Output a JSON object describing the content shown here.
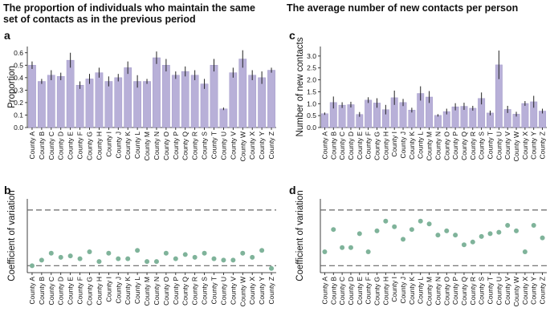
{
  "titles": {
    "left_line1": "The proportion of individuals who maintain the same",
    "left_line2": "set of contacts as in the previous period",
    "right": "The average number of new contacts per person"
  },
  "panel_letters": {
    "a": "a",
    "b": "b",
    "c": "c",
    "d": "d"
  },
  "colors": {
    "bar": "#b8b0d8",
    "bar_edge": "#9a90c4",
    "point": "#7fb39a",
    "error": "#222222",
    "ref_line": "#666666"
  },
  "chart_data": [
    {
      "id": "a",
      "type": "bar",
      "ylabel": "Proportion",
      "ylim": [
        0,
        0.65
      ],
      "yticks": [
        "0.0",
        "0.1",
        "0.2",
        "0.3",
        "0.4",
        "0.5",
        "0.6"
      ],
      "categories": [
        "County A",
        "County B",
        "County C",
        "County D",
        "County E",
        "County F",
        "County G",
        "County H",
        "County I",
        "County J",
        "County K",
        "County L",
        "County M",
        "County N",
        "County O",
        "County P",
        "County Q",
        "County R",
        "County S",
        "County T",
        "County U",
        "County V",
        "County W",
        "County X",
        "County Y",
        "County Z"
      ],
      "values": [
        0.5,
        0.37,
        0.42,
        0.41,
        0.54,
        0.34,
        0.39,
        0.44,
        0.37,
        0.4,
        0.48,
        0.37,
        0.37,
        0.56,
        0.5,
        0.42,
        0.45,
        0.42,
        0.35,
        0.5,
        0.15,
        0.44,
        0.55,
        0.42,
        0.4,
        0.46
      ],
      "errors": [
        0.03,
        0.02,
        0.04,
        0.03,
        0.06,
        0.03,
        0.04,
        0.04,
        0.04,
        0.03,
        0.05,
        0.05,
        0.02,
        0.05,
        0.05,
        0.03,
        0.04,
        0.04,
        0.04,
        0.05,
        0.01,
        0.04,
        0.07,
        0.04,
        0.05,
        0.02
      ]
    },
    {
      "id": "b",
      "type": "scatter",
      "ylabel": "Coefficient of variation",
      "ylim": [
        0.05,
        0.58
      ],
      "reference_lines": [
        0.1,
        0.5
      ],
      "categories": [
        "County A",
        "County B",
        "County C",
        "County D",
        "County E",
        "County F",
        "County G",
        "County H",
        "County I",
        "County J",
        "County K",
        "County L",
        "County M",
        "County N",
        "County O",
        "County P",
        "County Q",
        "County R",
        "County S",
        "County T",
        "County U",
        "County V",
        "County W",
        "County X",
        "County Y",
        "County Z"
      ],
      "values": [
        0.1,
        0.14,
        0.19,
        0.16,
        0.17,
        0.15,
        0.2,
        0.13,
        0.19,
        0.15,
        0.15,
        0.21,
        0.13,
        0.13,
        0.19,
        0.15,
        0.18,
        0.16,
        0.19,
        0.15,
        0.14,
        0.14,
        0.19,
        0.16,
        0.21,
        0.08
      ]
    },
    {
      "id": "c",
      "type": "bar",
      "ylabel": "Number of new contacts",
      "ylim": [
        0,
        3.4
      ],
      "yticks": [
        "0.0",
        "0.5",
        "1.0",
        "1.5",
        "2.0",
        "2.5",
        "3.0"
      ],
      "categories": [
        "County A",
        "County B",
        "County C",
        "County D",
        "County E",
        "County F",
        "County G",
        "County H",
        "County I",
        "County J",
        "County K",
        "County L",
        "County M",
        "County N",
        "County O",
        "County P",
        "County Q",
        "County R",
        "County S",
        "County T",
        "County U",
        "County V",
        "County W",
        "County X",
        "County Y",
        "County Z"
      ],
      "values": [
        0.58,
        1.05,
        0.94,
        0.96,
        0.55,
        1.15,
        1.03,
        0.75,
        1.25,
        1.05,
        0.73,
        1.43,
        1.28,
        0.51,
        0.67,
        0.87,
        0.89,
        0.81,
        1.22,
        0.61,
        2.63,
        0.76,
        0.56,
        1.01,
        1.08,
        0.69
      ],
      "errors": [
        0.05,
        0.25,
        0.12,
        0.12,
        0.1,
        0.12,
        0.2,
        0.2,
        0.3,
        0.15,
        0.1,
        0.3,
        0.25,
        0.05,
        0.12,
        0.15,
        0.15,
        0.1,
        0.25,
        0.1,
        0.6,
        0.15,
        0.1,
        0.1,
        0.25,
        0.1
      ]
    },
    {
      "id": "d",
      "type": "scatter",
      "ylabel": "Coefficient of variation",
      "ylim": [
        0.05,
        0.58
      ],
      "reference_lines": [
        0.1,
        0.5
      ],
      "categories": [
        "County A",
        "County B",
        "County C",
        "County D",
        "County E",
        "County F",
        "County G",
        "County H",
        "County I",
        "County J",
        "County K",
        "County L",
        "County M",
        "County N",
        "County O",
        "County P",
        "County Q",
        "County R",
        "County S",
        "County T",
        "County U",
        "County V",
        "County W",
        "County X",
        "County Y",
        "County Z"
      ],
      "values": [
        0.2,
        0.36,
        0.23,
        0.23,
        0.33,
        0.2,
        0.35,
        0.42,
        0.38,
        0.29,
        0.36,
        0.42,
        0.4,
        0.32,
        0.35,
        0.32,
        0.25,
        0.27,
        0.31,
        0.33,
        0.34,
        0.39,
        0.35,
        0.2,
        0.39,
        0.3
      ]
    }
  ]
}
